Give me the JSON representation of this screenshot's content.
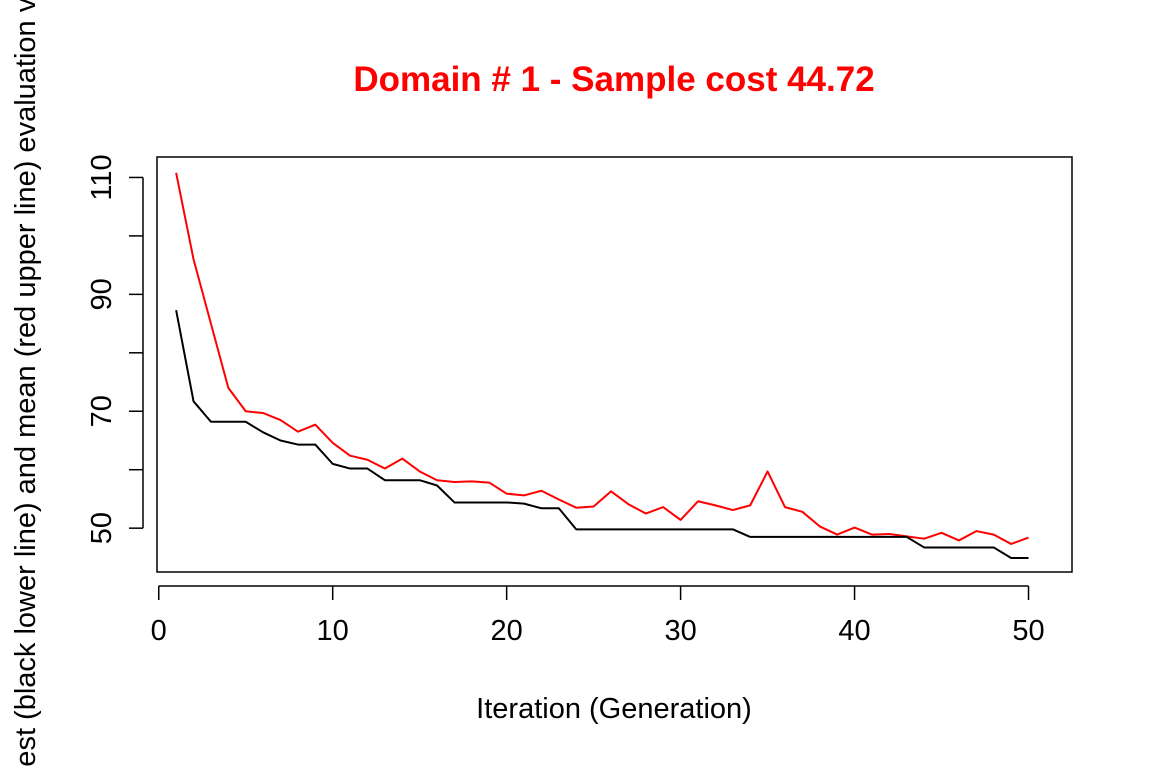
{
  "chart_data": {
    "type": "line",
    "title": "Domain # 1  - Sample cost 44.72",
    "title_color": "#ff0000",
    "xlabel": "Iteration (Generation)",
    "ylabel": "Best (black lower line) and mean (red upper line) evaluation value",
    "xlim": [
      -0.1,
      52.5
    ],
    "ylim": [
      42.5,
      113.5
    ],
    "xticks": [
      0,
      10,
      20,
      30,
      40,
      50
    ],
    "yticks": [
      50,
      60,
      70,
      80,
      90,
      100,
      110
    ],
    "ytick_labels": [
      "50",
      "",
      "70",
      "",
      "90",
      "",
      "110"
    ],
    "grid": false,
    "x": [
      1,
      2,
      3,
      4,
      5,
      6,
      7,
      8,
      9,
      10,
      11,
      12,
      13,
      14,
      15,
      16,
      17,
      18,
      19,
      20,
      21,
      22,
      23,
      24,
      25,
      26,
      27,
      28,
      29,
      30,
      31,
      32,
      33,
      34,
      35,
      36,
      37,
      38,
      39,
      40,
      41,
      42,
      43,
      44,
      45,
      46,
      47,
      48,
      49,
      50
    ],
    "series": [
      {
        "color": "#ff0000",
        "values": [
          110.8,
          96.0,
          85.0,
          74.0,
          70.0,
          69.7,
          68.5,
          66.5,
          67.7,
          64.6,
          62.4,
          61.7,
          60.2,
          61.9,
          59.7,
          58.2,
          57.9,
          58.0,
          57.8,
          55.9,
          55.6,
          56.4,
          54.9,
          53.5,
          53.7,
          56.3,
          54.1,
          52.5,
          53.6,
          51.4,
          54.6,
          53.9,
          53.1,
          53.9,
          59.7,
          53.6,
          52.8,
          50.3,
          48.9,
          50.1,
          48.9,
          49.0,
          48.6,
          48.2,
          49.2,
          47.9,
          49.5,
          48.9,
          47.3,
          48.4
        ]
      },
      {
        "color": "#000000",
        "values": [
          87.3,
          71.7,
          68.2,
          68.2,
          68.2,
          66.4,
          65.0,
          64.3,
          64.3,
          61.0,
          60.2,
          60.2,
          58.2,
          58.2,
          58.2,
          57.3,
          54.4,
          54.4,
          54.4,
          54.4,
          54.2,
          53.4,
          53.4,
          49.8,
          49.8,
          49.8,
          49.8,
          49.8,
          49.8,
          49.8,
          49.8,
          49.8,
          49.8,
          48.5,
          48.5,
          48.5,
          48.5,
          48.5,
          48.5,
          48.5,
          48.5,
          48.5,
          48.5,
          46.7,
          46.7,
          46.7,
          46.7,
          46.7,
          44.9,
          44.9
        ]
      }
    ]
  }
}
